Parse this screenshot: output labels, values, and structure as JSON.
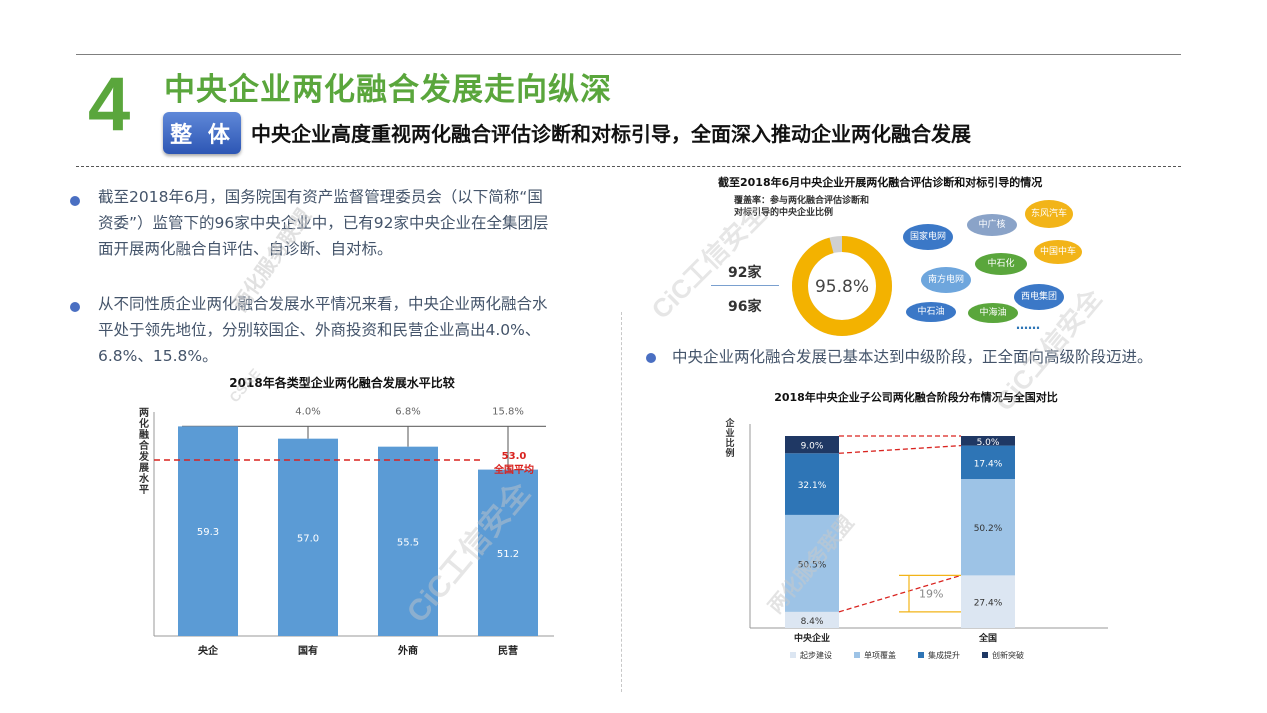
{
  "header": {
    "number": "4",
    "title": "中央企业两化融合发展走向纵深",
    "tag": "整 体",
    "subtitle": "中央企业高度重视两化融合评估诊断和对标引导，全面深入推动企业两化融合发展"
  },
  "left": {
    "bullet1": [
      "截至2018年6月，国务院国有资产监督管理委员会（以下简称“国",
      "资委”）监管下的96家中央企业中，已有92家中央企业在全集团层",
      "面开展两化融合自评估、自诊断、自对标。"
    ],
    "bullet2": [
      "从不同性质企业两化融合发展水平情况来看，中央企业两化融合水",
      "平处于领先地位，分别较国企、外商投资和民营企业高出4.0%、",
      "6.8%、15.8%。"
    ]
  },
  "right": {
    "top_title": "截至2018年6月中央企业开展两化融合评估诊断和对标引导的情况",
    "coverage_label": [
      "覆盖率：参与两化融合评估诊断和",
      "对标引导的中央企业比例"
    ],
    "count_top": "92家",
    "count_bottom": "96家",
    "donut_value": "95.8%",
    "donut_fraction": 0.958,
    "bubbles": [
      {
        "text": "国家电网",
        "color": "#3b78c7"
      },
      {
        "text": "中广核",
        "color": "#8aa3c8"
      },
      {
        "text": "东风汽车",
        "color": "#f2b418"
      },
      {
        "text": "中石化",
        "color": "#5aa63c"
      },
      {
        "text": "中国中车",
        "color": "#f2b418"
      },
      {
        "text": "南方电网",
        "color": "#6ea6dd"
      },
      {
        "text": "西电集团",
        "color": "#3b78c7"
      },
      {
        "text": "中石油",
        "color": "#3b78c7"
      },
      {
        "text": "中海油",
        "color": "#5aa63c"
      }
    ],
    "ellipsis": "……",
    "bullet3": "中央企业两化融合发展已基本达到中级阶段，正全面向高级阶段迈进。"
  },
  "watermarks": [
    "两化服务联盟",
    "CiC工信安全",
    "CSAE",
    "CiC工信安全",
    "两化服务联盟",
    "CiC工信安全"
  ],
  "chart_data": [
    {
      "type": "bar",
      "title": "2018年各类型企业两化融合发展水平比较",
      "ylabel": "两化融合发展水平",
      "categories": [
        "央企",
        "国有",
        "外商",
        "民营"
      ],
      "values": [
        59.3,
        57.0,
        55.5,
        51.2
      ],
      "gap_labels": [
        "",
        "4.0%",
        "6.8%",
        "15.8%"
      ],
      "reference_line": {
        "value": 53.0,
        "label": "53.0",
        "sublabel": "全国平均"
      },
      "ylim": [
        20,
        62
      ],
      "colors": {
        "bar": "#5b9bd5",
        "ref": "#d9231f"
      }
    },
    {
      "type": "bar",
      "stacked": true,
      "title": "2018年中央企业子公司两化融合阶段分布情况与全国对比",
      "ylabel": "企业比例",
      "categories": [
        "中央企业",
        "全国"
      ],
      "series": [
        {
          "name": "起步建设",
          "values": [
            8.4,
            27.4
          ],
          "color": "#dce6f2"
        },
        {
          "name": "单项覆盖",
          "values": [
            50.5,
            50.2
          ],
          "color": "#9dc3e6"
        },
        {
          "name": "集成提升",
          "values": [
            32.1,
            17.4
          ],
          "color": "#2e75b6"
        },
        {
          "name": "创新突破",
          "values": [
            9.0,
            5.0
          ],
          "color": "#1f3864"
        }
      ],
      "annotation": "19%",
      "legend_position": "bottom"
    }
  ]
}
